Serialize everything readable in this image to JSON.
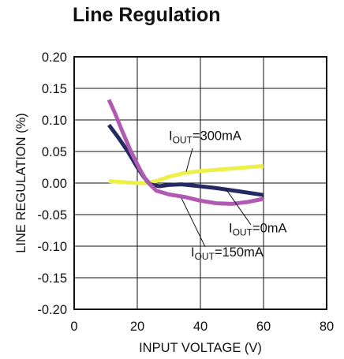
{
  "chart_data": {
    "type": "line",
    "title": "Line Regulation",
    "xlabel": "INPUT VOLTAGE (V)",
    "ylabel": "LINE REGULATION (%)",
    "xlim": [
      0,
      80
    ],
    "ylim": [
      -0.2,
      0.2
    ],
    "xticks": [
      "0",
      "20",
      "40",
      "60",
      "80"
    ],
    "yticks": [
      "0.20",
      "0.15",
      "0.10",
      "0.05",
      "0.00",
      "-0.05",
      "-0.10",
      "-0.15",
      "-0.20"
    ],
    "xtick_values": [
      0,
      20,
      40,
      60,
      80
    ],
    "ytick_values": [
      0.2,
      0.15,
      0.1,
      0.05,
      0.0,
      -0.05,
      -0.1,
      -0.15,
      -0.2
    ],
    "grid": true,
    "series": [
      {
        "name": "IOUT=300mA",
        "label_main": "I",
        "label_sub": "OUT",
        "label_rest": "=300mA",
        "color": "#eef04a",
        "x": [
          11,
          14,
          17,
          20,
          23,
          26,
          30,
          35,
          40,
          45,
          50,
          55,
          60
        ],
        "y": [
          0.003,
          0.002,
          0.001,
          0.0,
          0.0,
          0.003,
          0.01,
          0.016,
          0.019,
          0.021,
          0.023,
          0.025,
          0.027
        ]
      },
      {
        "name": "IOUT=0mA",
        "label_main": "I",
        "label_sub": "OUT",
        "label_rest": "=0mA",
        "color": "#252b62",
        "x": [
          11,
          14,
          17,
          20,
          22,
          24,
          27,
          30,
          34,
          38,
          45,
          52,
          60
        ],
        "y": [
          0.092,
          0.072,
          0.05,
          0.025,
          0.01,
          -0.002,
          -0.005,
          -0.003,
          -0.002,
          -0.004,
          -0.008,
          -0.013,
          -0.019
        ]
      },
      {
        "name": "IOUT=150mA",
        "label_main": "I",
        "label_sub": "OUT",
        "label_rest": "=150mA",
        "color": "#b05ab2",
        "x": [
          11,
          13,
          15,
          18,
          21,
          23,
          26,
          30,
          35,
          40,
          45,
          50,
          55,
          60
        ],
        "y": [
          0.132,
          0.11,
          0.085,
          0.05,
          0.02,
          0.003,
          -0.012,
          -0.018,
          -0.022,
          -0.028,
          -0.032,
          -0.033,
          -0.03,
          -0.025
        ]
      }
    ],
    "annotations": [
      {
        "series": "IOUT=300mA",
        "text_x": 30,
        "text_y": 0.068,
        "leader_from": [
          37.5,
          0.055
        ],
        "leader_to": [
          35.5,
          0.018
        ]
      },
      {
        "series": "IOUT=0mA",
        "text_x": 49,
        "text_y": -0.078,
        "leader_from": [
          56,
          -0.066
        ],
        "leader_to": [
          48,
          -0.009
        ]
      },
      {
        "series": "IOUT=150mA",
        "text_x": 37,
        "text_y": -0.116,
        "leader_from": [
          41.5,
          -0.101
        ],
        "leader_to": [
          34,
          -0.024
        ]
      }
    ]
  }
}
